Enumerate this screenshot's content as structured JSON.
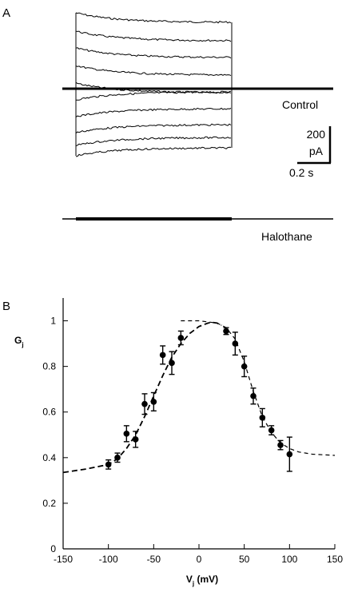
{
  "panel_a": {
    "label": "A",
    "trace_labels": [
      "Control",
      "Halothane"
    ],
    "scale_bar": {
      "current_value": "200",
      "current_unit": "pA",
      "time_label": "0.2 s"
    }
  },
  "panel_b": {
    "label": "B"
  },
  "chart_data": {
    "type": "scatter",
    "title": "",
    "xlabel": "V",
    "xlabel_sub": "j",
    "xlabel_unit": " (mV)",
    "ylabel": "G",
    "ylabel_sub": "j",
    "xlim": [
      -150,
      150
    ],
    "ylim": [
      0,
      1.1
    ],
    "xticks": [
      -150,
      -100,
      -50,
      0,
      50,
      100,
      150
    ],
    "yticks": [
      0,
      0.2,
      0.4,
      0.6,
      0.8,
      1
    ],
    "ytick_labels": [
      "0",
      "0.2",
      "0.4",
      "0.6",
      "0.8",
      "1"
    ],
    "grid": false,
    "points": [
      {
        "x": -100,
        "y": 0.37,
        "err": 0.02
      },
      {
        "x": -90,
        "y": 0.4,
        "err": 0.02
      },
      {
        "x": -80,
        "y": 0.505,
        "err": 0.035
      },
      {
        "x": -70,
        "y": 0.48,
        "err": 0.035
      },
      {
        "x": -60,
        "y": 0.635,
        "err": 0.045
      },
      {
        "x": -50,
        "y": 0.645,
        "err": 0.04
      },
      {
        "x": -40,
        "y": 0.85,
        "err": 0.04
      },
      {
        "x": -30,
        "y": 0.815,
        "err": 0.05
      },
      {
        "x": -20,
        "y": 0.925,
        "err": 0.03
      },
      {
        "x": 30,
        "y": 0.955,
        "err": 0.015
      },
      {
        "x": 40,
        "y": 0.9,
        "err": 0.05
      },
      {
        "x": 50,
        "y": 0.8,
        "err": 0.045
      },
      {
        "x": 60,
        "y": 0.67,
        "err": 0.035
      },
      {
        "x": 70,
        "y": 0.575,
        "err": 0.04
      },
      {
        "x": 80,
        "y": 0.52,
        "err": 0.02
      },
      {
        "x": 90,
        "y": 0.455,
        "err": 0.02
      },
      {
        "x": 100,
        "y": 0.415,
        "err": 0.075
      }
    ],
    "fits": [
      {
        "style": "dashed",
        "x": [
          -150,
          -125,
          -100,
          -90,
          -80,
          -70,
          -60,
          -50,
          -40,
          -30,
          -20,
          -10,
          0,
          10,
          15,
          20,
          25
        ],
        "y": [
          0.335,
          0.35,
          0.37,
          0.395,
          0.44,
          0.5,
          0.58,
          0.67,
          0.76,
          0.84,
          0.9,
          0.945,
          0.975,
          0.99,
          0.993,
          0.99,
          0.98
        ]
      },
      {
        "style": "dashed",
        "x": [
          -20,
          0,
          20,
          30,
          40,
          50,
          60,
          70,
          80,
          90,
          100,
          110,
          125,
          150
        ],
        "y": [
          1.0,
          1.0,
          0.99,
          0.97,
          0.92,
          0.82,
          0.69,
          0.58,
          0.51,
          0.465,
          0.44,
          0.425,
          0.415,
          0.41
        ]
      }
    ]
  }
}
